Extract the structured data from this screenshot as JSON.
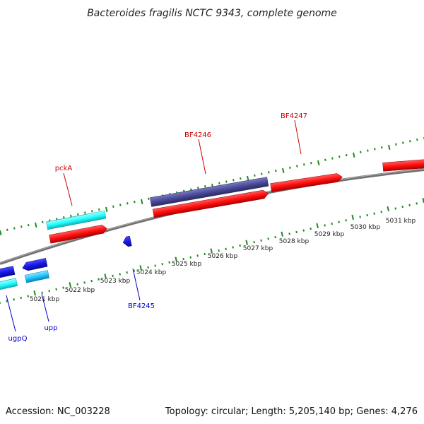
{
  "title": "Bacteroides fragilis NCTC 9343, complete genome",
  "footer": {
    "accession": "Accession: NC_003228",
    "info": "Topology: circular; Length: 5,205,140 bp; Genes: 4,276"
  },
  "colors": {
    "forward_cds": "#ff1010",
    "reverse_cds": "#1818e8",
    "forward_rna": "#22ffff",
    "reverse_rna": "#22c8ff",
    "highlighted": "#4a4a9a",
    "backbone": "#808080",
    "ticks": "#228b22",
    "forward_label": "#cc0000",
    "reverse_label": "#0000cc"
  },
  "kbp_labels": [
    "5021 kbp",
    "5022 kbp",
    "5023 kbp",
    "5024 kbp",
    "5025 kbp",
    "5026 kbp",
    "5027 kbp",
    "5028 kbp",
    "5029 kbp",
    "5030 kbp",
    "5031 kbp"
  ],
  "gene_labels": {
    "pckA": "pckA",
    "BF4246": "BF4246",
    "BF4247": "BF4247",
    "BF4245": "BF4245",
    "upp": "upp",
    "ugpQ": "ugpQ"
  }
}
